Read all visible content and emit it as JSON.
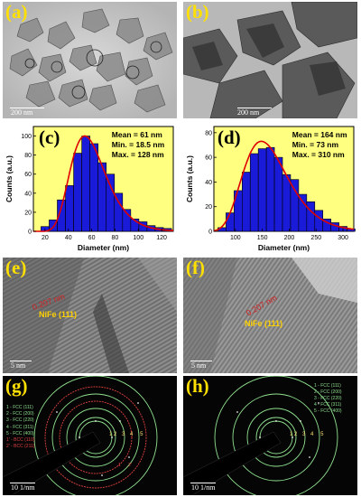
{
  "panels": {
    "a": {
      "label": "(a)",
      "scale": "200 nm"
    },
    "b": {
      "label": "(b)",
      "scale": "200 nm"
    },
    "c": {
      "label": "(c)"
    },
    "d": {
      "label": "(d)"
    },
    "e": {
      "label": "(e)",
      "scale": "5 nm",
      "dspacing": "0.207 nm",
      "plane": "NiFe (111)"
    },
    "f": {
      "label": "(f)",
      "scale": "5 nm",
      "dspacing": "0.207 nm",
      "plane": "NiFe (111)"
    },
    "g": {
      "label": "(g)",
      "scale": "10 1/nm",
      "legend": [
        "1 - FCC (111)",
        "2 - FCC (200)",
        "3 - FCC (220)",
        "4 - FCC (311)",
        "5 - FCC (400)",
        "1' - BCC (110)",
        "2' - BCC (211)"
      ],
      "ring_labels": [
        "1",
        "2",
        "3",
        "4",
        "5",
        "1'",
        "2'"
      ]
    },
    "h": {
      "label": "(h)",
      "scale": "10 1/nm",
      "legend": [
        "1 - FCC (111)",
        "2 - FCC (200)",
        "3 - FCC (220)",
        "4 - FCC (311)",
        "5 - FCC (400)"
      ],
      "ring_labels": [
        "1",
        "2",
        "3",
        "4",
        "5"
      ]
    }
  },
  "colors": {
    "panel_label": "#ffe000",
    "bar": "#1a1ad9",
    "fit": "#e00000",
    "plot_bg": "#ffff80",
    "green_ring": "#8fe08f",
    "red_ring": "#e04040"
  },
  "chart_data": [
    {
      "type": "bar",
      "xlabel": "Diameter (nm)",
      "ylabel": "Counts (a.u.)",
      "xlim": [
        10,
        130
      ],
      "ylim": [
        0,
        110
      ],
      "xticks": [
        20,
        40,
        60,
        80,
        100,
        120
      ],
      "yticks": [
        0,
        20,
        40,
        60,
        80,
        100
      ],
      "bin_width": 7,
      "x": [
        20,
        27,
        34,
        41,
        48,
        55,
        62,
        69,
        76,
        83,
        90,
        97,
        104,
        111,
        118,
        125
      ],
      "values": [
        5,
        12,
        33,
        48,
        82,
        100,
        92,
        72,
        60,
        40,
        23,
        13,
        10,
        6,
        4,
        3
      ],
      "fit": {
        "type": "lognormal",
        "peak_x": 54,
        "peak_y": 100
      },
      "annotations": [
        "Mean = 61 nm",
        "Min. = 18.5 nm",
        "Max. = 128 nm"
      ]
    },
    {
      "type": "bar",
      "xlabel": "Diameter (nm)",
      "ylabel": "Counts (a.u.)",
      "xlim": [
        60,
        320
      ],
      "ylim": [
        0,
        85
      ],
      "xticks": [
        100,
        150,
        200,
        250,
        300
      ],
      "yticks": [
        0,
        20,
        40,
        60,
        80
      ],
      "bin_width": 15,
      "x": [
        75,
        90,
        105,
        120,
        135,
        150,
        165,
        180,
        195,
        210,
        225,
        240,
        255,
        270,
        285,
        300,
        315
      ],
      "values": [
        3,
        15,
        33,
        48,
        63,
        67,
        68,
        60,
        46,
        42,
        30,
        24,
        17,
        10,
        7,
        4,
        2
      ],
      "fit": {
        "type": "lognormal",
        "peak_x": 148,
        "peak_y": 73
      },
      "annotations": [
        "Mean = 164 nm",
        "Min. = 73 nm",
        "Max. = 310 nm"
      ]
    }
  ]
}
